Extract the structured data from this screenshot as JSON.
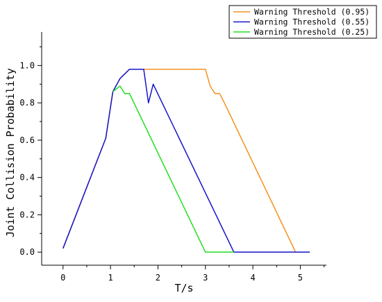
{
  "chart_data": {
    "type": "line",
    "title": "",
    "xlabel": "T/s",
    "ylabel": "Joint Collision Probability",
    "xlim": [
      -0.45,
      5.55
    ],
    "ylim": [
      -0.07,
      1.18
    ],
    "x_ticks": [
      0,
      1,
      2,
      3,
      4,
      5
    ],
    "y_ticks": [
      0.0,
      0.2,
      0.4,
      0.6,
      0.8,
      1.0
    ],
    "x_tick_labels": [
      "0",
      "1",
      "2",
      "3",
      "4",
      "5"
    ],
    "y_tick_labels": [
      "0.0",
      "0.2",
      "0.4",
      "0.6",
      "0.8",
      "1.0"
    ],
    "grid": false,
    "legend_position": "top-right-outside",
    "series": [
      {
        "name": "Warning Threshold (0.95)",
        "color": "#f5901e",
        "points": [
          [
            0,
            0.02
          ],
          [
            0.9,
            0.61
          ],
          [
            1.05,
            0.86
          ],
          [
            1.2,
            0.93
          ],
          [
            1.4,
            0.98
          ],
          [
            1.7,
            0.98
          ],
          [
            3.0,
            0.98
          ],
          [
            3.1,
            0.89
          ],
          [
            3.2,
            0.85
          ],
          [
            3.3,
            0.85
          ],
          [
            3.4,
            0.8
          ],
          [
            4.9,
            0.0
          ]
        ]
      },
      {
        "name": "Warning Threshold (0.55)",
        "color": "#1414cc",
        "points": [
          [
            0,
            0.02
          ],
          [
            0.9,
            0.61
          ],
          [
            1.05,
            0.86
          ],
          [
            1.2,
            0.93
          ],
          [
            1.4,
            0.98
          ],
          [
            1.7,
            0.98
          ],
          [
            1.8,
            0.8
          ],
          [
            1.9,
            0.9
          ],
          [
            3.6,
            0.0
          ],
          [
            5.2,
            0.0
          ]
        ]
      },
      {
        "name": "Warning Threshold (0.25)",
        "color": "#22dd22",
        "points": [
          [
            1.05,
            0.86
          ],
          [
            1.2,
            0.89
          ],
          [
            1.3,
            0.85
          ],
          [
            1.4,
            0.85
          ],
          [
            3.0,
            0.0
          ],
          [
            3.6,
            0.0
          ]
        ]
      }
    ]
  }
}
